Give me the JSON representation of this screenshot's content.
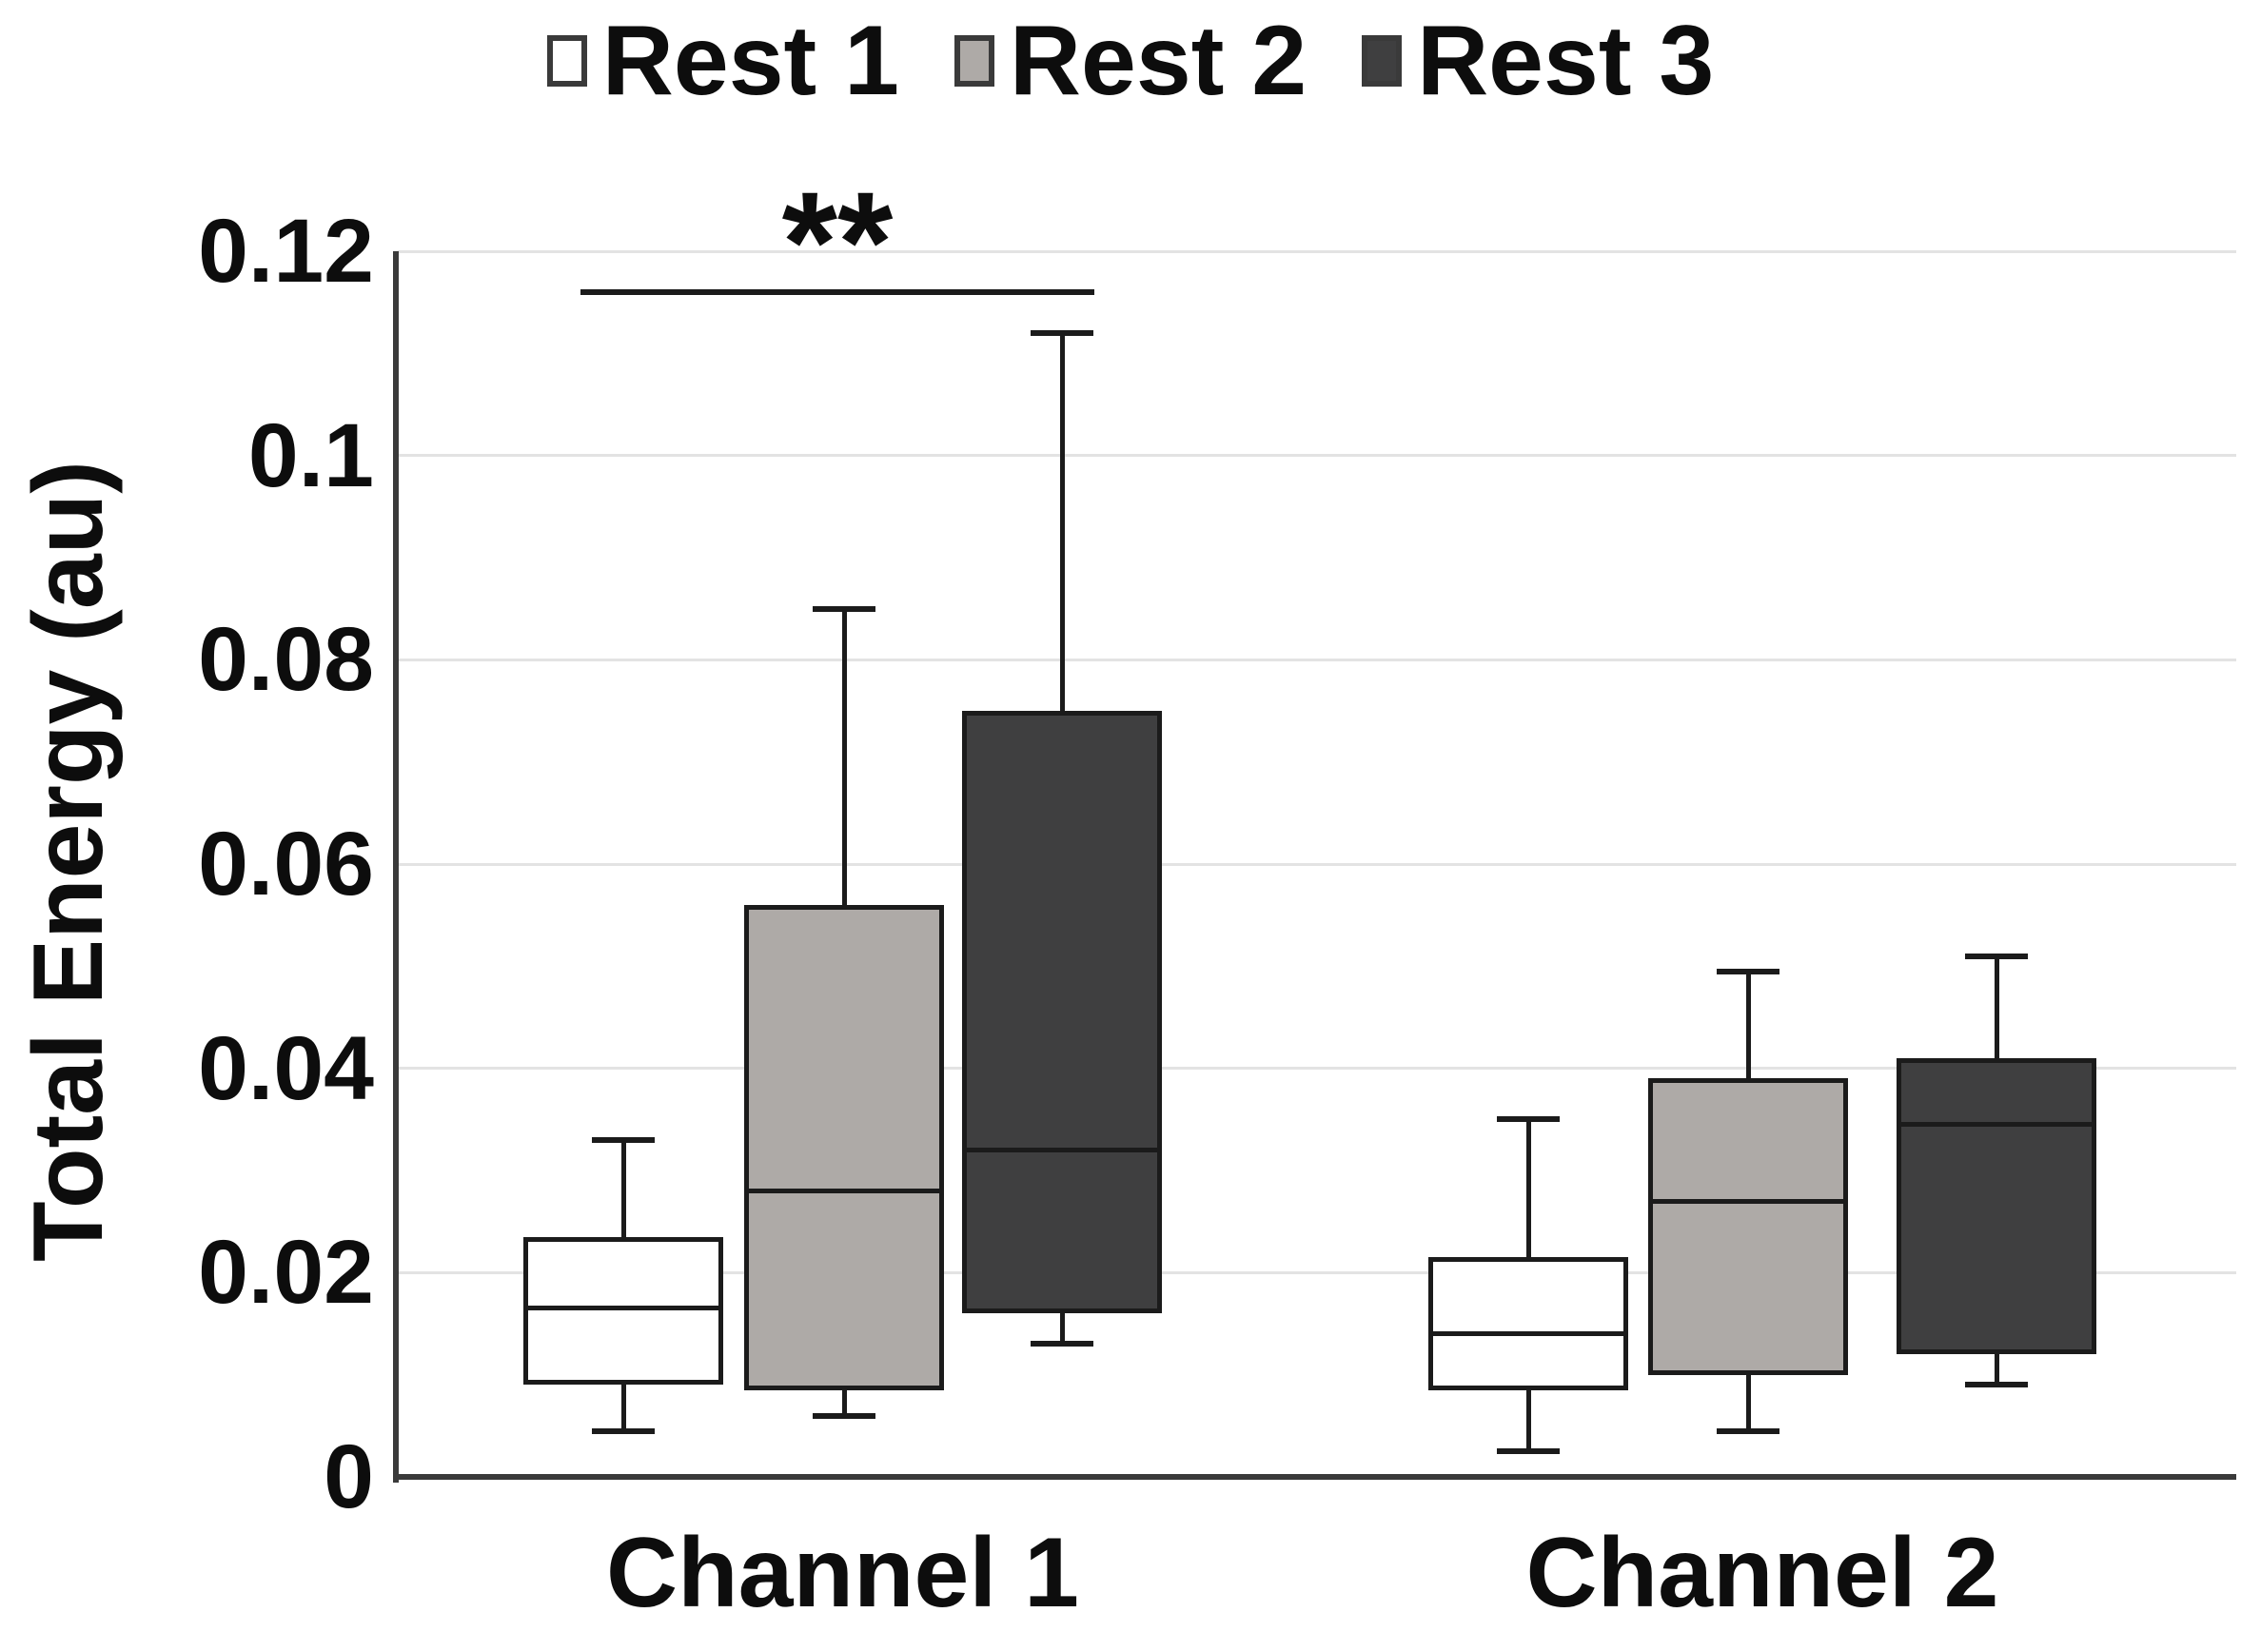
{
  "chart_data": {
    "type": "boxplot",
    "title": "",
    "xlabel": "",
    "ylabel": "Total Energy (au)",
    "groups": [
      "Channel 1",
      "Channel 2"
    ],
    "series": [
      {
        "name": "Rest 1",
        "color": "#ffffff"
      },
      {
        "name": "Rest 2",
        "color": "#aeaaa7"
      },
      {
        "name": "Rest 3",
        "color": "#3f3f40"
      }
    ],
    "y_axis": {
      "min": 0,
      "max": 0.12,
      "tick_interval": 0.02,
      "tick_labels": [
        "0",
        "0.02",
        "0.04",
        "0.06",
        "0.08",
        "0.1",
        "0.12"
      ],
      "grid": true
    },
    "boxes": [
      {
        "group": "Channel 1",
        "series": "Rest 1",
        "whisker_min": 0.0045,
        "q1": 0.009,
        "median": 0.0165,
        "q3": 0.0235,
        "whisker_max": 0.033
      },
      {
        "group": "Channel 1",
        "series": "Rest 2",
        "whisker_min": 0.006,
        "q1": 0.0085,
        "median": 0.028,
        "q3": 0.056,
        "whisker_max": 0.085
      },
      {
        "group": "Channel 1",
        "series": "Rest 3",
        "whisker_min": 0.013,
        "q1": 0.016,
        "median": 0.032,
        "q3": 0.075,
        "whisker_max": 0.112
      },
      {
        "group": "Channel 2",
        "series": "Rest 1",
        "whisker_min": 0.0025,
        "q1": 0.0085,
        "median": 0.014,
        "q3": 0.0215,
        "whisker_max": 0.035
      },
      {
        "group": "Channel 2",
        "series": "Rest 2",
        "whisker_min": 0.0045,
        "q1": 0.01,
        "median": 0.027,
        "q3": 0.039,
        "whisker_max": 0.0495
      },
      {
        "group": "Channel 2",
        "series": "Rest 3",
        "whisker_min": 0.009,
        "q1": 0.012,
        "median": 0.0345,
        "q3": 0.041,
        "whisker_max": 0.051
      }
    ],
    "annotations": [
      {
        "type": "significance-bracket",
        "group": "Channel 1",
        "from_series": "Rest 1",
        "to_series": "Rest 3",
        "label": "**",
        "y_value": 0.116
      }
    ],
    "legend_position": "top",
    "line_color": "#1b1b1b",
    "grid_color": "#e3e3e3"
  }
}
